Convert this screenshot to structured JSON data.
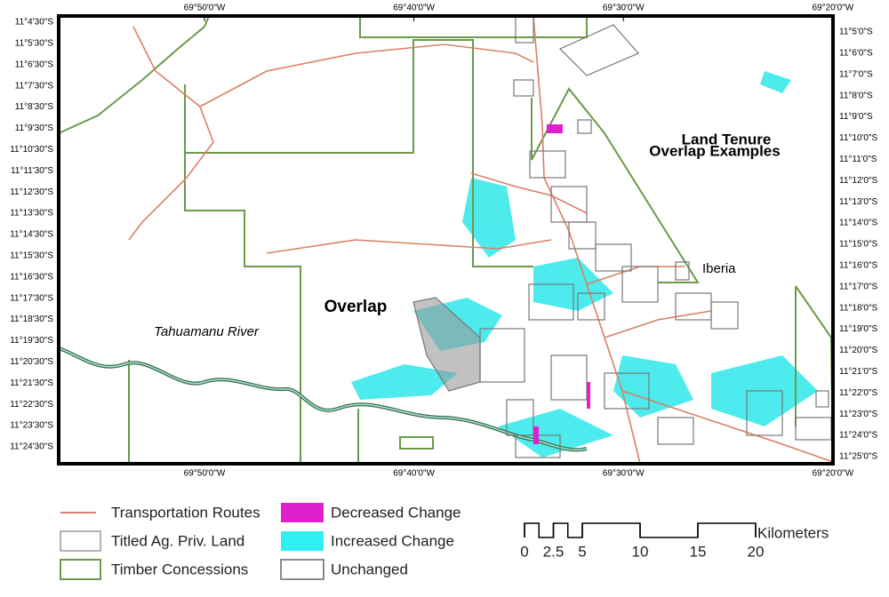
{
  "map": {
    "lon_labels": [
      "69°50'0\"W",
      "69°40'0\"W",
      "69°30'0\"W",
      "69°20'0\"W"
    ],
    "lat_left": [
      "11°4'30\"S",
      "11°5'30\"S",
      "11°6'30\"S",
      "11°7'30\"S",
      "11°8'30\"S",
      "11°9'30\"S",
      "11°10'30\"S",
      "11°11'30\"S",
      "11°12'30\"S",
      "11°13'30\"S",
      "11°14'30\"S",
      "11°15'30\"S",
      "11°16'30\"S",
      "11°17'30\"S",
      "11°18'30\"S",
      "11°19'30\"S",
      "11°20'30\"S",
      "11°21'30\"S",
      "11°22'30\"S",
      "11°23'30\"S",
      "11°24'30\"S"
    ],
    "lat_right": [
      "11°5'0\"S",
      "11°6'0\"S",
      "11°7'0\"S",
      "11°8'0\"S",
      "11°9'0\"S",
      "11°10'0\"S",
      "11°11'0\"S",
      "11°12'0\"S",
      "11°13'0\"S",
      "11°14'0\"S",
      "11°15'0\"S",
      "11°16'0\"S",
      "11°17'0\"S",
      "11°18'0\"S",
      "11°19'0\"S",
      "11°20'0\"S",
      "11°21'0\"S",
      "11°22'0\"S",
      "11°23'0\"S",
      "11°24'0\"S",
      "11°25'0\"S"
    ],
    "labels": {
      "title_line1": "Land Tenure",
      "title_line2": "Overlap Examples",
      "town": "Iberia",
      "overlap": "Overlap",
      "river": "Tahuamanu River"
    }
  },
  "legend": [
    "Transportation Routes",
    "Titled Ag. Priv. Land",
    "Timber Concessions",
    "Decreased Change",
    "Increased Change",
    "Unchanged"
  ],
  "scale_bar": {
    "ticks": [
      0,
      2.5,
      5,
      10,
      15,
      20
    ],
    "unit": "Kilometers"
  }
}
